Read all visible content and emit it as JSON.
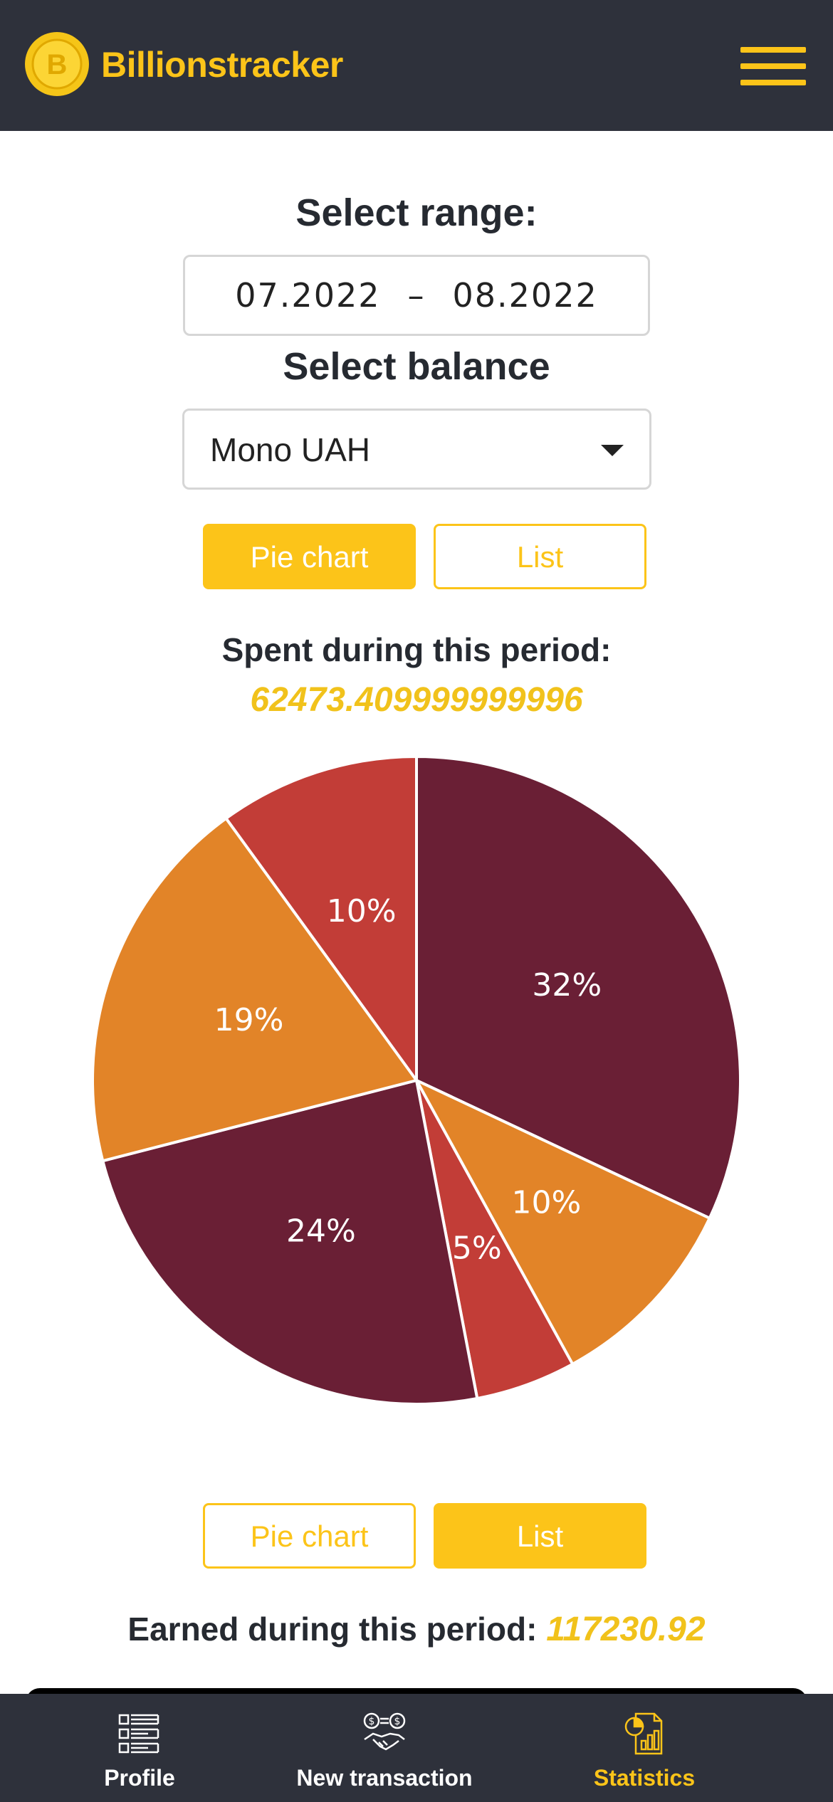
{
  "app": {
    "brand": "Billionstracker",
    "logo_letter": "B"
  },
  "range": {
    "heading": "Select range:",
    "from": "07.2022",
    "separator": "–",
    "to": "08.2022"
  },
  "balance": {
    "heading": "Select balance",
    "selected": "Mono UAH"
  },
  "spent_toggle": {
    "pie_label": "Pie chart",
    "list_label": "List",
    "active": "pie"
  },
  "spent": {
    "label": "Spent during this period:",
    "value": "62473.409999999996"
  },
  "chart_data": {
    "type": "pie",
    "slices": [
      {
        "label": "32%",
        "value": 32,
        "color": "#6a1f35"
      },
      {
        "label": "10%",
        "value": 10,
        "color": "#e28428"
      },
      {
        "label": "5%",
        "value": 5,
        "color": "#c23d37"
      },
      {
        "label": "24%",
        "value": 24,
        "color": "#6a1f35"
      },
      {
        "label": "19%",
        "value": 19,
        "color": "#e28428"
      },
      {
        "label": "10%",
        "value": 10,
        "color": "#c23d37"
      }
    ]
  },
  "earned_toggle": {
    "pie_label": "Pie chart",
    "list_label": "List",
    "active": "list"
  },
  "earned": {
    "label": "Earned during this period:",
    "value": "117230.92"
  },
  "tabs": [
    {
      "label": "Profile",
      "icon": "profile-list-icon",
      "active": false
    },
    {
      "label": "New transaction",
      "icon": "handshake-exchange-icon",
      "active": false
    },
    {
      "label": "Statistics",
      "icon": "statistics-report-icon",
      "active": true
    }
  ],
  "colors": {
    "accent": "#fcc419",
    "header_bg": "#2e313b",
    "maroon": "#6a1f35",
    "orange": "#e28428",
    "red": "#c23d37"
  }
}
